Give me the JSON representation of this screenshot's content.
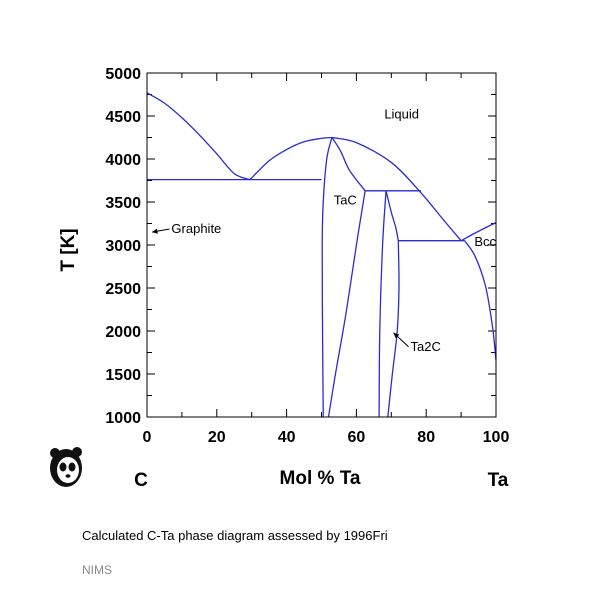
{
  "chart_data": {
    "type": "line",
    "title": "",
    "xlabel": "Mol % Ta",
    "ylabel": "T [K]",
    "xlim": [
      0,
      100
    ],
    "ylim": [
      1000,
      5000
    ],
    "x_ticks": [
      0,
      20,
      40,
      60,
      80,
      100
    ],
    "y_ticks": [
      1000,
      1500,
      2000,
      2500,
      3000,
      3500,
      4000,
      4500,
      5000
    ],
    "end_labels": {
      "left": "C",
      "right": "Ta"
    },
    "line_color": "#2a2ad6",
    "series": [
      {
        "x": [
          0,
          5,
          10,
          15,
          20,
          25,
          29.5
        ],
        "y": [
          4770,
          4650,
          4480,
          4280,
          4060,
          3830,
          3760
        ]
      },
      {
        "x": [
          29.5,
          35,
          40,
          45,
          50,
          53
        ],
        "y": [
          3760,
          3980,
          4110,
          4200,
          4240,
          4250
        ]
      },
      {
        "x": [
          53,
          60,
          70,
          78,
          85,
          90
        ],
        "y": [
          4250,
          4190,
          3960,
          3630,
          3290,
          3050
        ]
      },
      {
        "x": [
          0,
          50
        ],
        "y": [
          3760,
          3760
        ]
      },
      {
        "x": [
          53,
          51.5,
          50.5,
          50.2,
          50.3,
          50.5
        ],
        "y": [
          4250,
          4000,
          3500,
          3000,
          2000,
          1000
        ]
      },
      {
        "x": [
          53,
          55.5,
          58,
          62.5
        ],
        "y": [
          4250,
          4090,
          3870,
          3630
        ]
      },
      {
        "x": [
          62.5,
          78.5
        ],
        "y": [
          3630,
          3630
        ]
      },
      {
        "x": [
          62.5,
          60,
          57,
          54,
          52
        ],
        "y": [
          3630,
          3000,
          2200,
          1500,
          1000
        ]
      },
      {
        "x": [
          68.5,
          67.5,
          66.7,
          66.5
        ],
        "y": [
          3630,
          3000,
          2000,
          1000
        ]
      },
      {
        "x": [
          68.5,
          70,
          71.3,
          72
        ],
        "y": [
          3630,
          3380,
          3200,
          3050
        ]
      },
      {
        "x": [
          72,
          72.2,
          71.7,
          70.3,
          69
        ],
        "y": [
          3050,
          2500,
          2000,
          1500,
          1000
        ]
      },
      {
        "x": [
          72,
          91
        ],
        "y": [
          3050,
          3050
        ]
      },
      {
        "x": [
          90,
          95,
          100
        ],
        "y": [
          3050,
          3160,
          3260
        ]
      },
      {
        "x": [
          91,
          94,
          97,
          99,
          100
        ],
        "y": [
          3050,
          2870,
          2520,
          2050,
          1660
        ]
      }
    ],
    "annotations": [
      {
        "text": "Liquid",
        "x": 68,
        "y": 4470
      },
      {
        "text": "TaC",
        "x": 53.5,
        "y": 3470
      },
      {
        "text": "Bcc",
        "x": 93.8,
        "y": 2990
      },
      {
        "text": "Graphite",
        "x": 7,
        "y": 3140,
        "arrow_to": [
          0.3,
          3150
        ]
      },
      {
        "text": "Ta2C",
        "x": 75.5,
        "y": 1770,
        "arrow_to": [
          69.5,
          1980
        ]
      }
    ]
  },
  "caption": "Calculated C-Ta phase diagram assessed by 1996Fri",
  "organization": "NIMS",
  "logo_icon": "panda-icon"
}
